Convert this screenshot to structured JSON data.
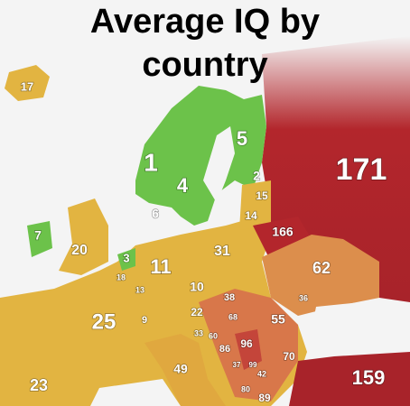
{
  "title": "Average IQ by country",
  "labels": [
    "17",
    "1",
    "4",
    "5",
    "2",
    "171",
    "15",
    "6",
    "14",
    "7",
    "20",
    "166",
    "3",
    "11",
    "31",
    "62",
    "18",
    "13",
    "10",
    "38",
    "36",
    "25",
    "9",
    "22",
    "55",
    "68",
    "33",
    "60",
    "86",
    "96",
    "37",
    "99",
    "70",
    "49",
    "42",
    "80",
    "89",
    "23",
    "159"
  ]
}
